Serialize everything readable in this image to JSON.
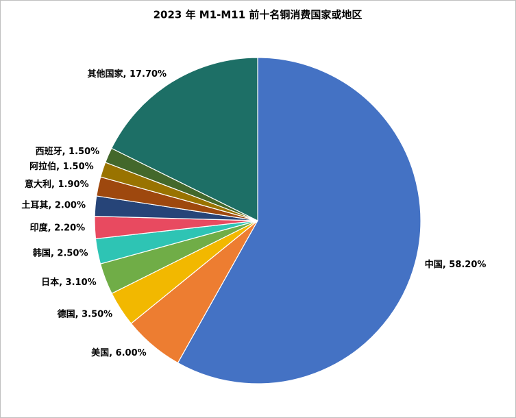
{
  "chart_data": {
    "type": "pie",
    "title": "2023 年 M1-M11 前十名铜消费国家或地区",
    "categories": [
      "中国",
      "美国",
      "德国",
      "日本",
      "韩国",
      "印度",
      "土耳其",
      "意大利",
      "阿拉伯",
      "西班牙",
      "其他国家"
    ],
    "values": [
      58.2,
      6.0,
      3.5,
      3.1,
      2.5,
      2.2,
      2.0,
      1.9,
      1.5,
      1.5,
      17.7
    ],
    "value_labels": [
      "58.20%",
      "6.00%",
      "3.50%",
      "3.10%",
      "2.50%",
      "2.20%",
      "2.00%",
      "1.90%",
      "1.50%",
      "1.50%",
      "17.70%"
    ],
    "colors": [
      "#4472c4",
      "#ed7d31",
      "#f2b800",
      "#70ad47",
      "#2ec4b4",
      "#e84a60",
      "#264478",
      "#9e480e",
      "#997300",
      "#43682b",
      "#1d6f66"
    ]
  }
}
